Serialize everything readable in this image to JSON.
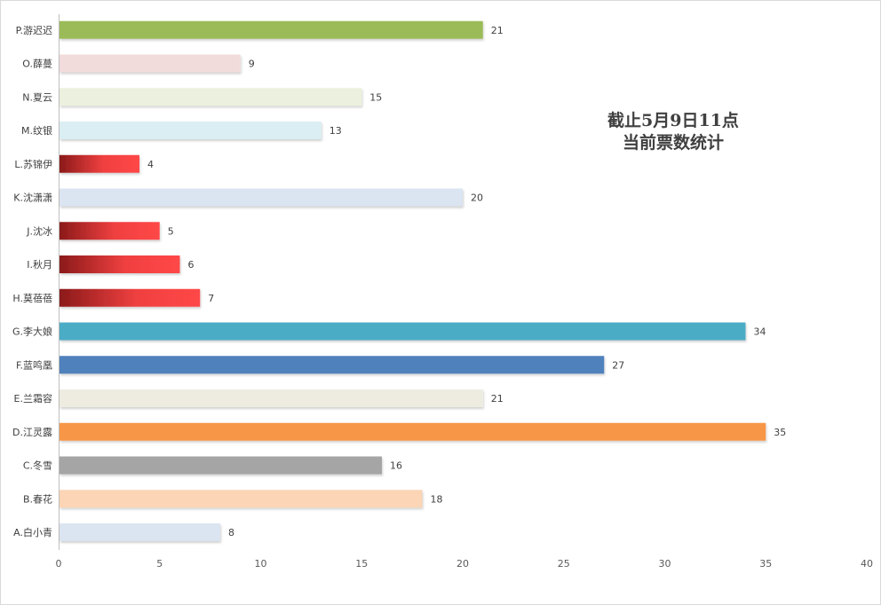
{
  "chart_data": {
    "type": "bar",
    "orientation": "horizontal",
    "title_lines": [
      "截止5月9日11点",
      "当前票数统计"
    ],
    "categories": [
      "A.白小青",
      "B.春花",
      "C.冬雪",
      "D.江灵露",
      "E.兰霜容",
      "F.蓝鸣凰",
      "G.李大娘",
      "H.莫蓓蓓",
      "I.秋月",
      "J.沈冰",
      "K.沈潇潇",
      "L.苏锦伊",
      "M.纹银",
      "N.夏云",
      "O.薛蔓",
      "P.游迟迟"
    ],
    "values": [
      8,
      18,
      16,
      35,
      21,
      27,
      34,
      7,
      6,
      5,
      20,
      4,
      13,
      15,
      9,
      21
    ],
    "colors": [
      "#dbe5f1",
      "#fbd5b5",
      "#a5a5a5",
      "#f79646",
      "#eeece1",
      "#4f81bd",
      "#4bacc6",
      "gradient-red",
      "gradient-red",
      "gradient-red",
      "#dbe5f1",
      "gradient-red",
      "#daeef3",
      "#ebf1de",
      "#f2dcdb",
      "#9bbb59"
    ],
    "xlim": [
      0,
      40
    ],
    "xticks": [
      0,
      5,
      10,
      15,
      20,
      25,
      30,
      35,
      40
    ],
    "data_labels": true,
    "legend": "none",
    "grid": false
  }
}
